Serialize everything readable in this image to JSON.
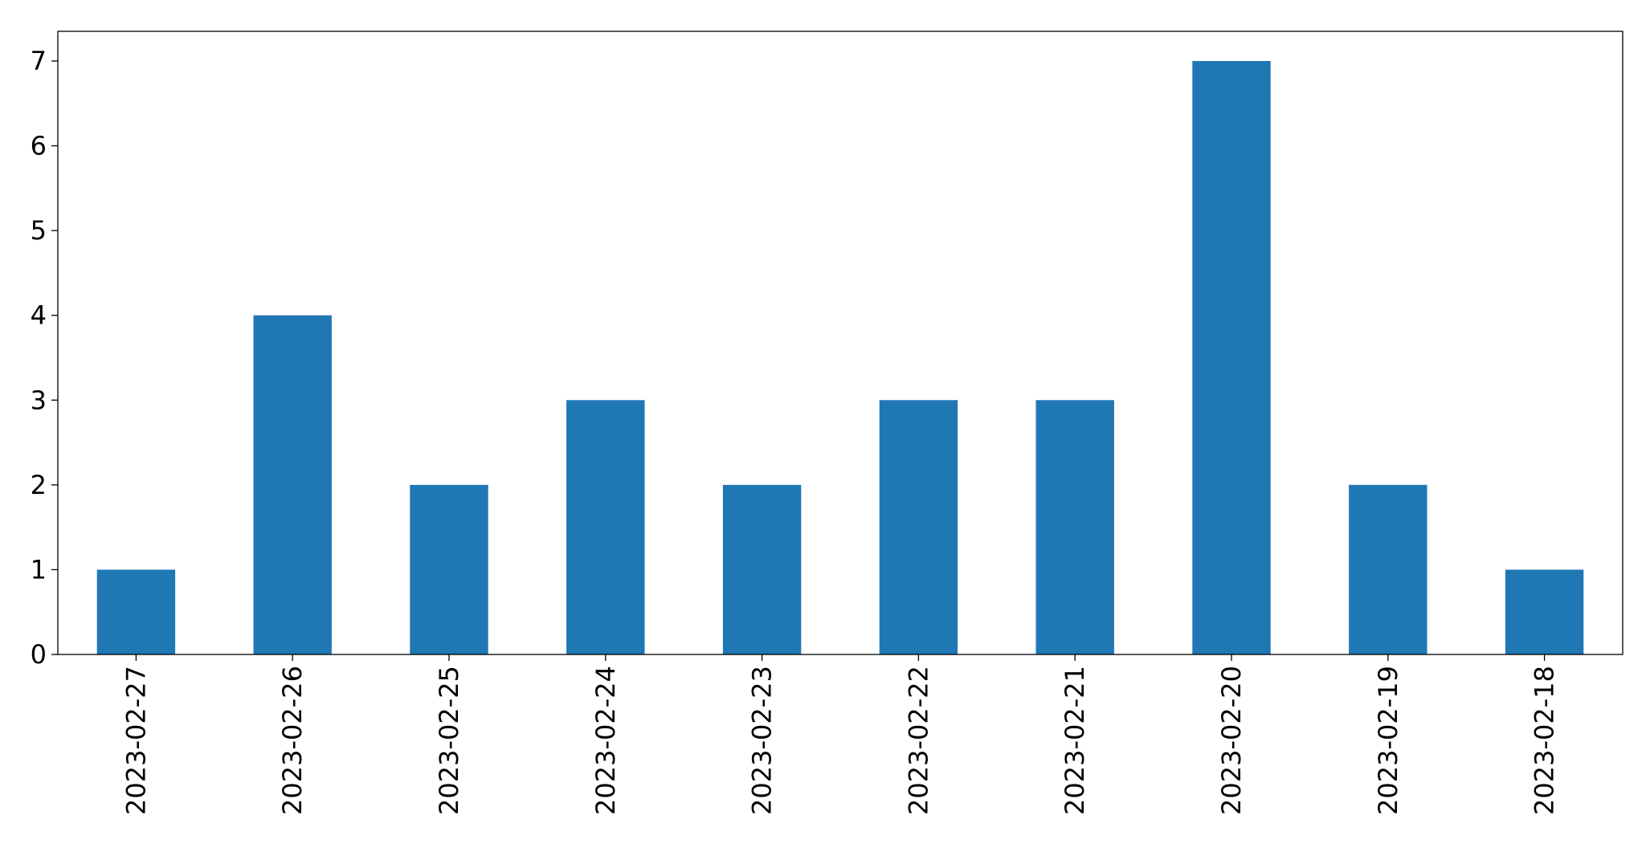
{
  "chart_data": {
    "type": "bar",
    "categories": [
      "2023-02-27",
      "2023-02-26",
      "2023-02-25",
      "2023-02-24",
      "2023-02-23",
      "2023-02-22",
      "2023-02-21",
      "2023-02-20",
      "2023-02-19",
      "2023-02-18"
    ],
    "values": [
      1,
      4,
      2,
      3,
      2,
      3,
      3,
      7,
      2,
      1
    ],
    "color": "#1f77b4",
    "ylim": [
      0,
      7.35
    ],
    "yticks": [
      0,
      1,
      2,
      3,
      4,
      5,
      6,
      7
    ],
    "grid": false
  }
}
